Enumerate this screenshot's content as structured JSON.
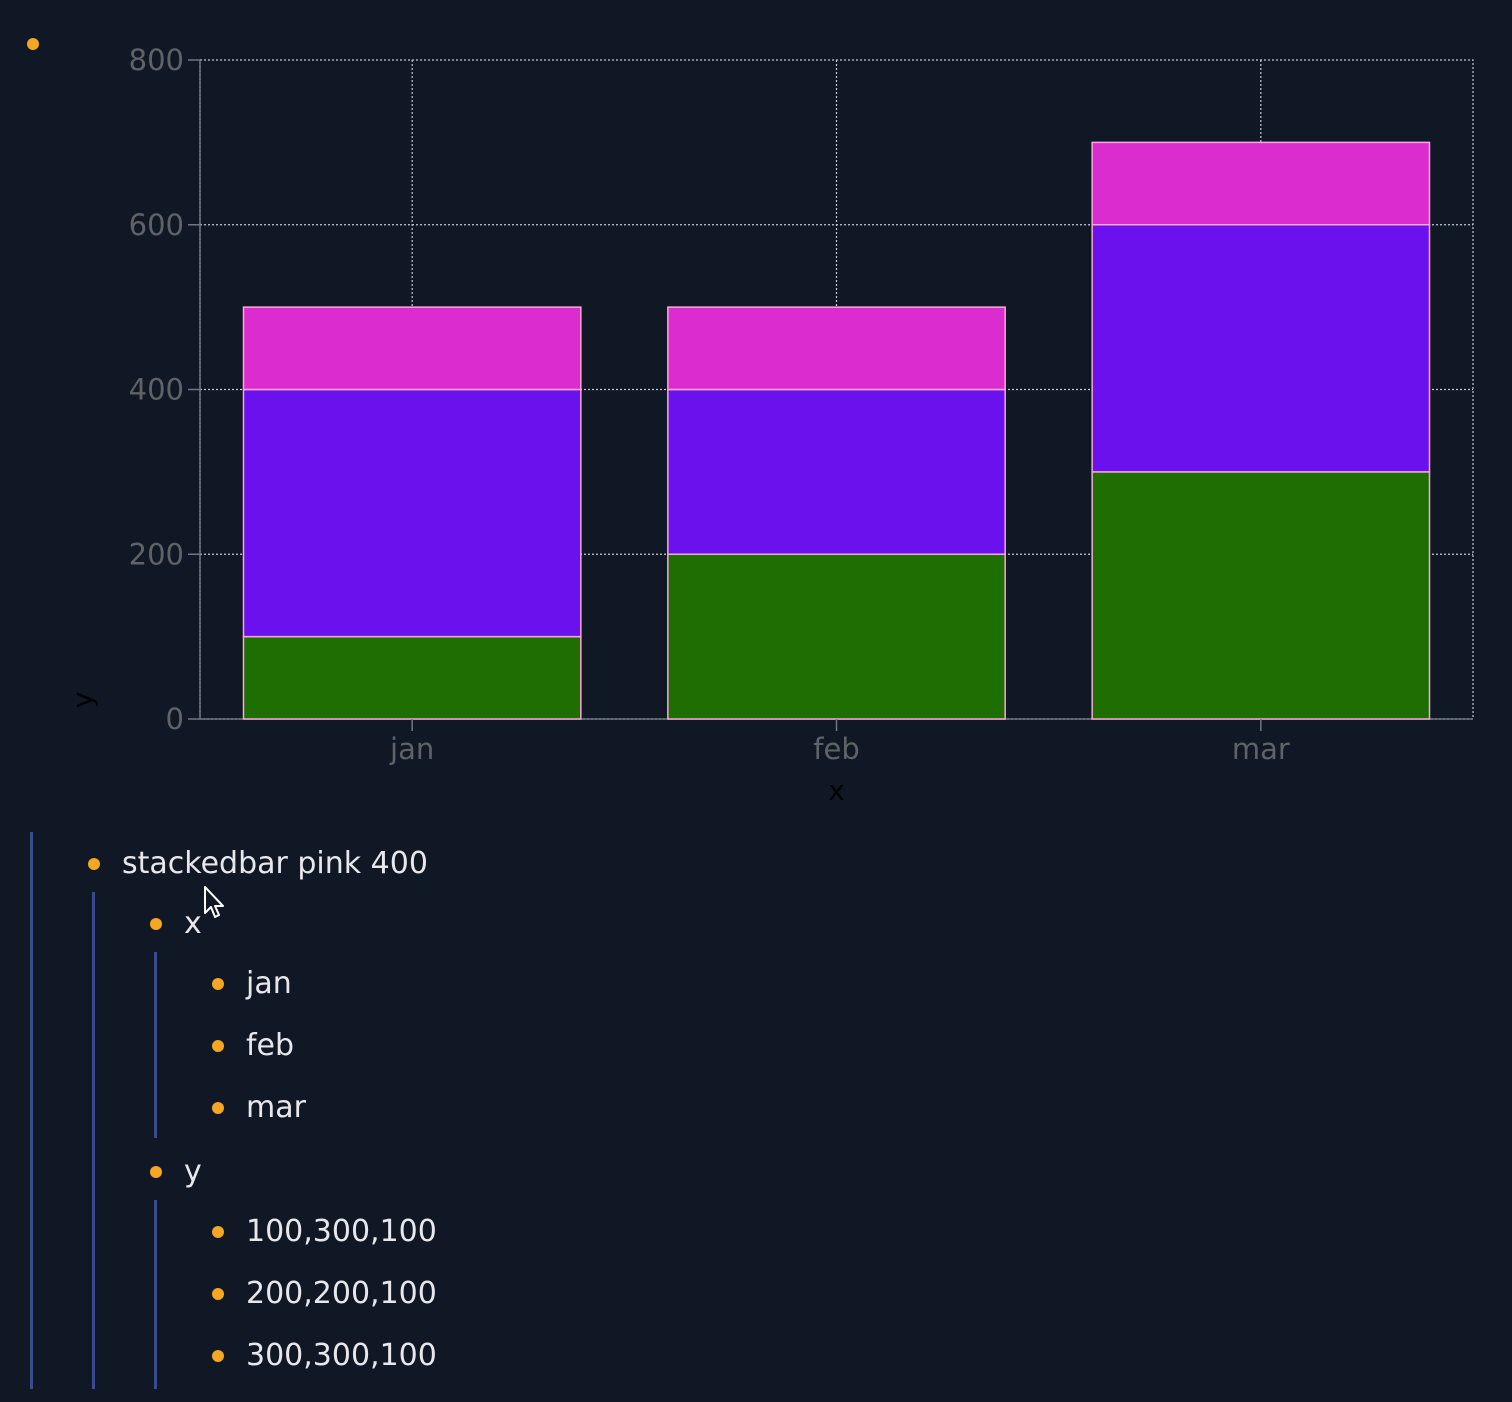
{
  "theme": {
    "background": "#0f1824",
    "bullet_color": "#f5a623",
    "guide_color": "#3a4a8c",
    "text_color": "#e8e8ec",
    "axis_text_color": "#5f6368"
  },
  "chart_data": {
    "type": "bar",
    "stacked": true,
    "categories": [
      "jan",
      "feb",
      "mar"
    ],
    "series": [
      {
        "values": [
          100,
          200,
          300
        ],
        "color": "#1f6e02"
      },
      {
        "values": [
          300,
          200,
          300
        ],
        "color": "#6a11ee"
      },
      {
        "values": [
          100,
          100,
          100
        ],
        "color": "#db2ccf"
      }
    ],
    "bar_outline": "#f9a8d4",
    "xlabel": "x",
    "ylabel": "y",
    "ylim": [
      0,
      800
    ],
    "yticks": [
      0,
      200,
      400,
      600,
      800
    ],
    "grid": true
  },
  "outline": {
    "root": {
      "label": "stackedbar pink 400"
    },
    "x_node": {
      "label": "x"
    },
    "x_items": [
      "jan",
      "feb",
      "mar"
    ],
    "y_node": {
      "label": "y"
    },
    "y_items": [
      "100,300,100",
      "200,200,100",
      "300,300,100"
    ]
  }
}
